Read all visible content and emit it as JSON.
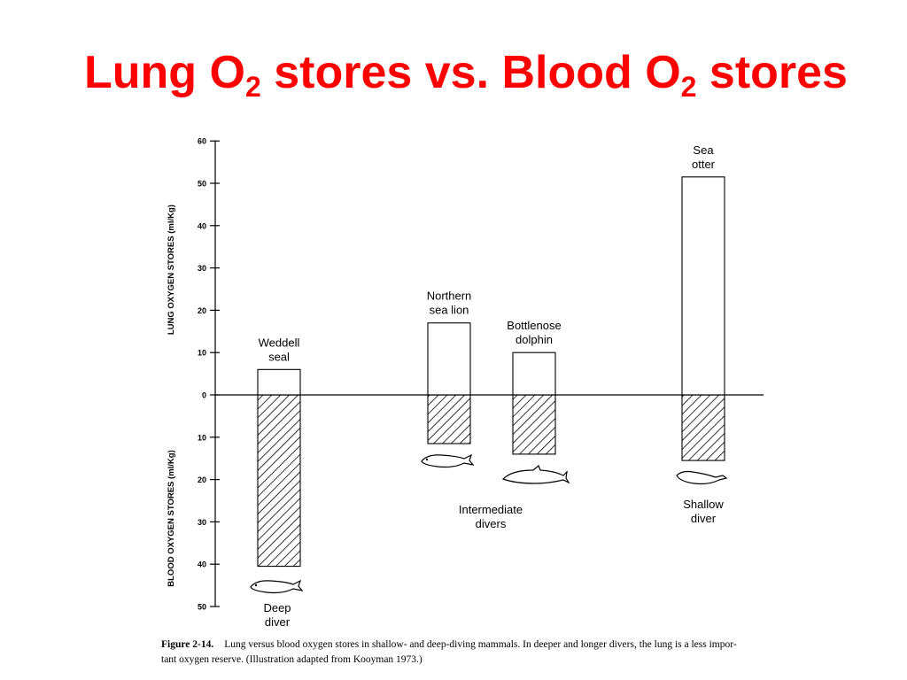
{
  "slide": {
    "title_parts": [
      "Lung O",
      "2",
      " stores vs. Blood O",
      "2",
      " stores"
    ],
    "title_color": "#ff0000"
  },
  "caption": {
    "label": "Figure 2-14.",
    "line1": "Lung versus blood oxygen stores in shallow- and deep-diving mammals. In deeper and longer divers, the lung is a less impor-",
    "line2": "tant oxygen reserve. (Illustration adapted from Kooyman 1973.)"
  },
  "chart_data": {
    "type": "bar",
    "categories": [
      "Weddell seal",
      "Northern sea lion",
      "Bottlenose dolphin",
      "Sea otter"
    ],
    "category_label_lines": [
      [
        "Weddell",
        "seal"
      ],
      [
        "Northern",
        "sea lion"
      ],
      [
        "Bottlenose",
        "dolphin"
      ],
      [
        "Sea",
        "otter"
      ]
    ],
    "series": [
      {
        "name": "Lung oxygen stores",
        "values": [
          6,
          17,
          10,
          51.5
        ],
        "pattern": "open"
      },
      {
        "name": "Blood oxygen stores",
        "values": [
          40.5,
          11.5,
          14,
          15.5
        ],
        "pattern": "hatched"
      }
    ],
    "upper_axis": {
      "label": "LUNG OXYGEN STORES (ml/Kg)",
      "ticks": [
        0,
        10,
        20,
        30,
        40,
        50,
        60
      ],
      "range": [
        0,
        60
      ]
    },
    "lower_axis": {
      "label": "BLOOD OXYGEN STORES (ml/Kg)",
      "ticks": [
        10,
        20,
        30,
        40,
        50
      ],
      "range": [
        0,
        50
      ]
    },
    "group_labels": [
      {
        "lines": [
          "Deep",
          "diver"
        ],
        "animals": [
          "Weddell seal"
        ]
      },
      {
        "lines": [
          "Intermediate",
          "divers"
        ],
        "animals": [
          "Northern sea lion",
          "Bottlenose dolphin"
        ]
      },
      {
        "lines": [
          "Shallow",
          "diver"
        ],
        "animals": [
          "Sea otter"
        ]
      }
    ],
    "grid": false
  }
}
